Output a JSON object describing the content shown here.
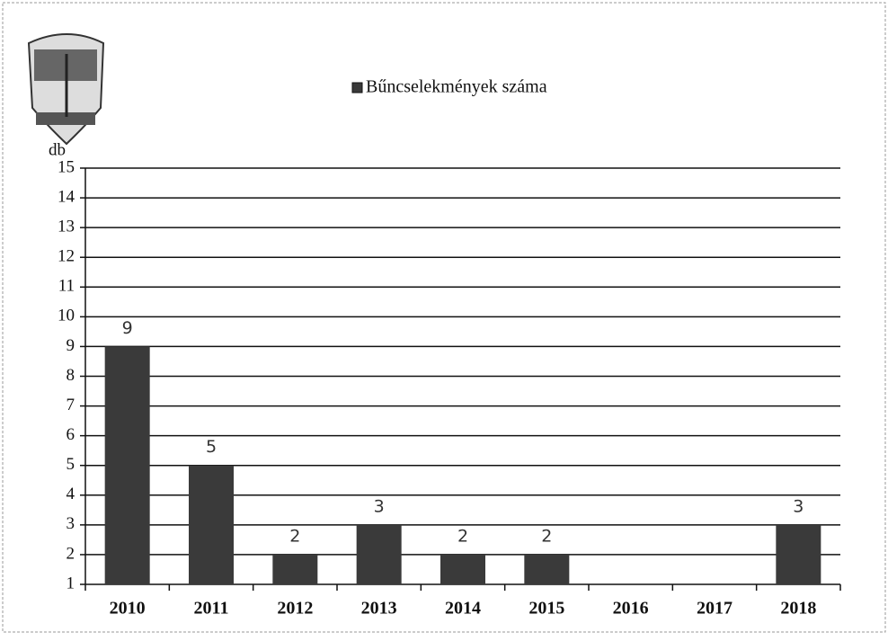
{
  "chart_data": {
    "type": "bar",
    "y_label": "db",
    "categories": [
      "2010",
      "2011",
      "2012",
      "2013",
      "2014",
      "2015",
      "2016",
      "2017",
      "2018"
    ],
    "series": [
      {
        "name": "Bűncselekmények száma",
        "color": "#3a3a3a",
        "values": [
          9,
          5,
          2,
          3,
          2,
          2,
          null,
          null,
          3
        ]
      }
    ],
    "ylim": [
      1,
      15
    ],
    "yticks": [
      1,
      2,
      3,
      4,
      5,
      6,
      7,
      8,
      9,
      10,
      11,
      12,
      13,
      14,
      15
    ],
    "grid": true,
    "legend": "top",
    "data_labels": true
  }
}
